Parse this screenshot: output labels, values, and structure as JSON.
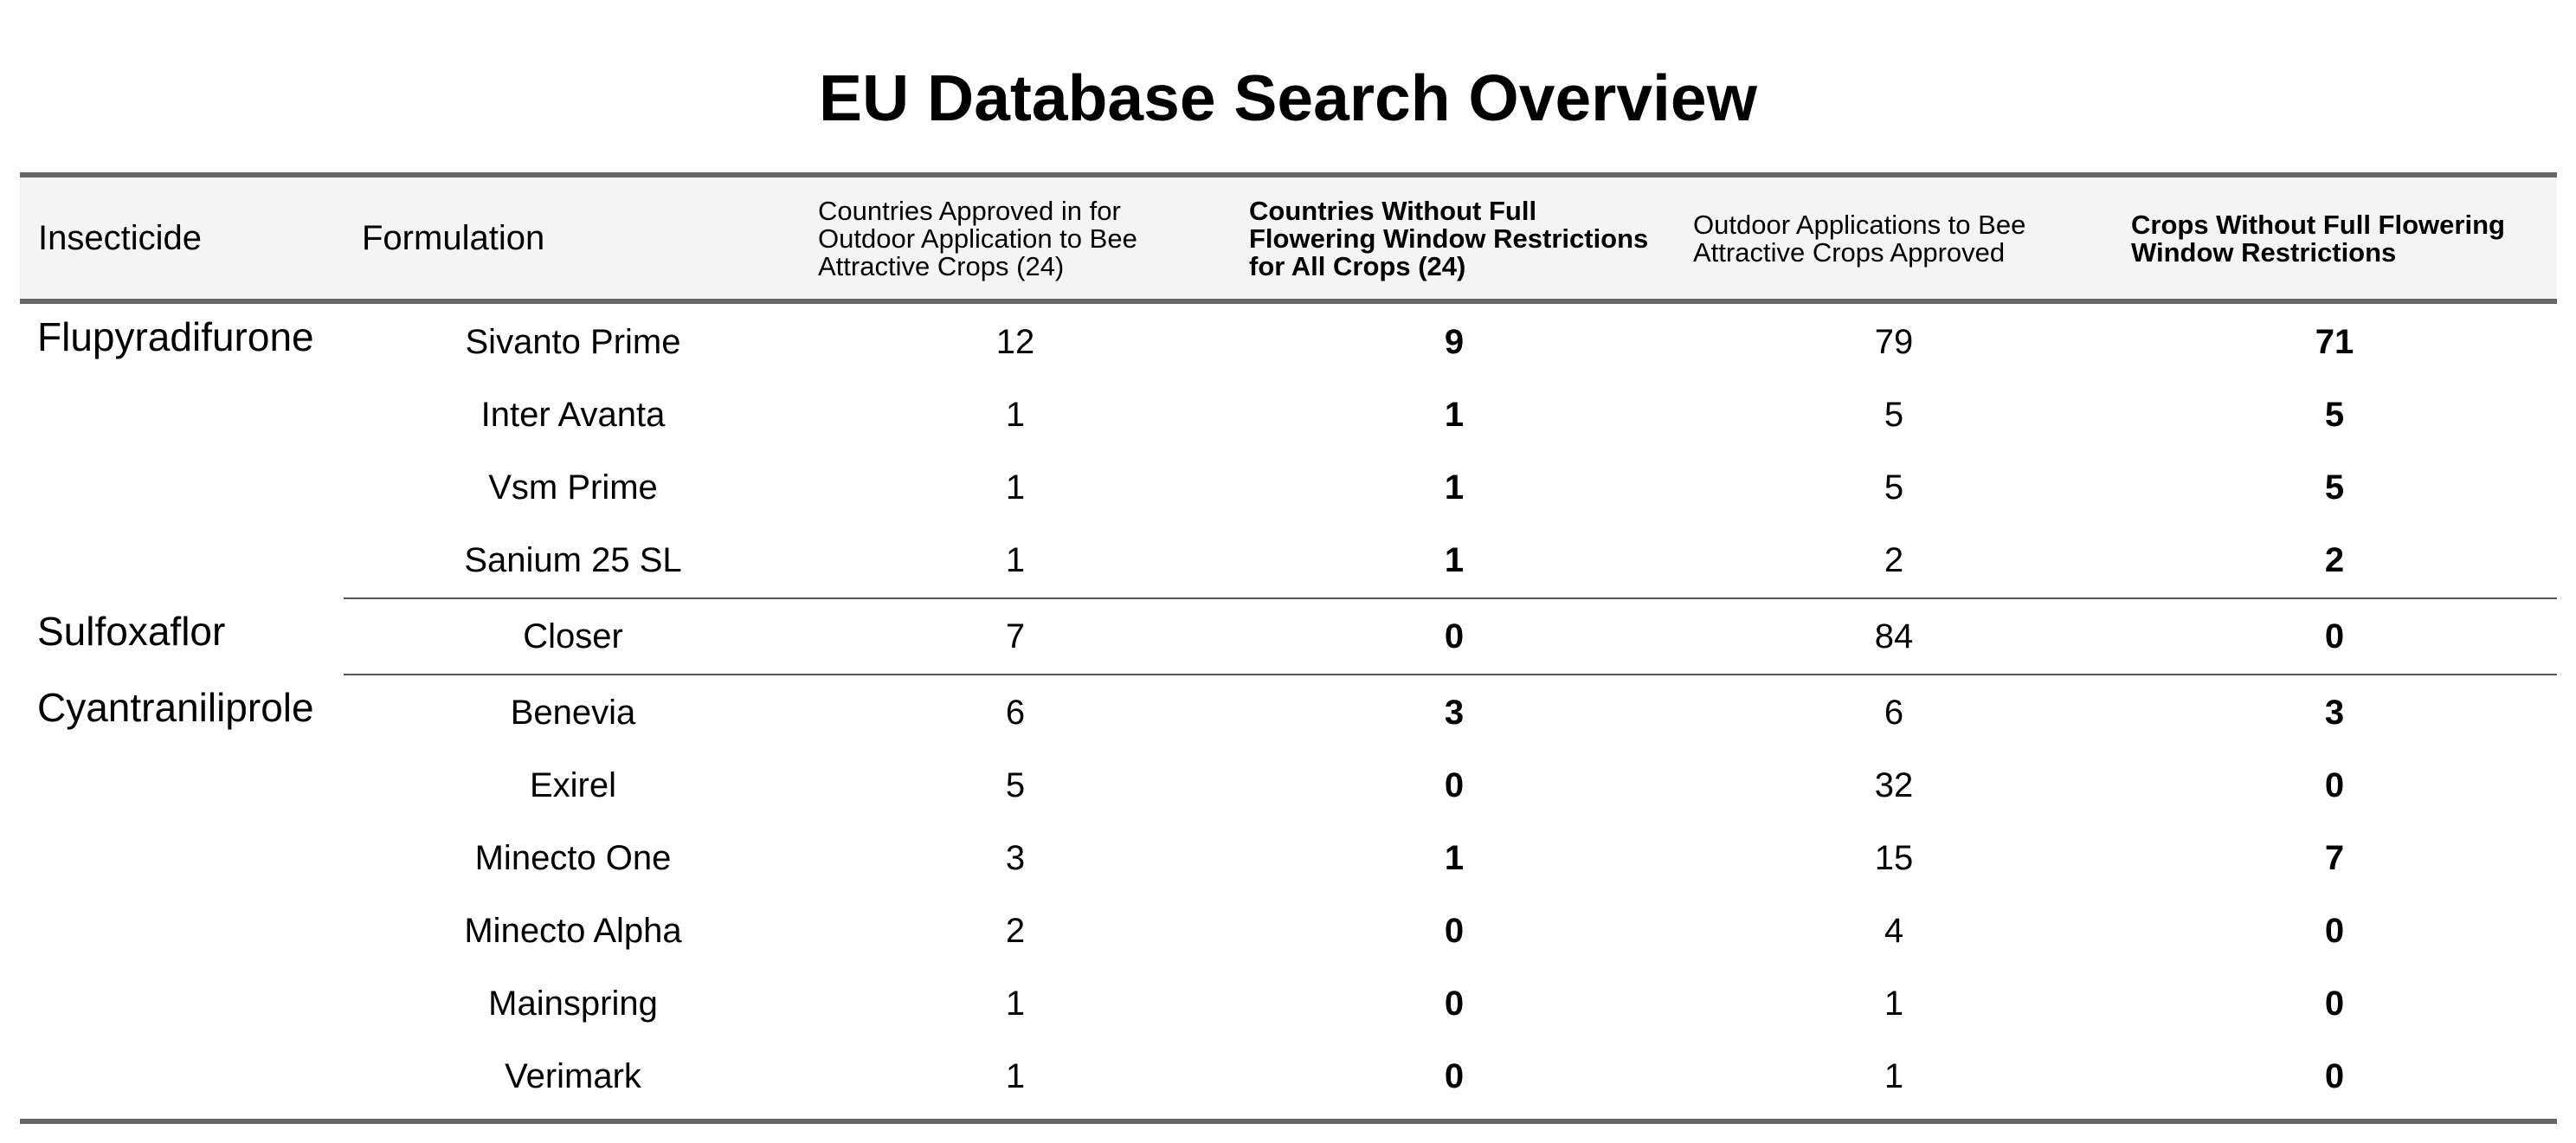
{
  "title": "EU Database Search Overview",
  "columns": [
    "Insecticide",
    "Formulation",
    "Countries Approved in for Outdoor Application to Bee Attractive Crops (24)",
    "Countries Without Full Flowering Window Restrictions for All Crops (24)",
    "Outdoor Applications to Bee Attractive Crops Approved",
    "Crops Without Full Flowering Window Restrictions"
  ],
  "groups": [
    {
      "insecticide": "Flupyradifurone",
      "rows": [
        {
          "formulation": "Sivanto Prime",
          "countries_approved": "12",
          "countries_without": "9",
          "outdoor_apps": "79",
          "crops_without": "71"
        },
        {
          "formulation": "Inter Avanta",
          "countries_approved": "1",
          "countries_without": "1",
          "outdoor_apps": "5",
          "crops_without": "5"
        },
        {
          "formulation": "Vsm Prime",
          "countries_approved": "1",
          "countries_without": "1",
          "outdoor_apps": "5",
          "crops_without": "5"
        },
        {
          "formulation": "Sanium 25 SL",
          "countries_approved": "1",
          "countries_without": "1",
          "outdoor_apps": "2",
          "crops_without": "2"
        }
      ]
    },
    {
      "insecticide": "Sulfoxaflor",
      "rows": [
        {
          "formulation": "Closer",
          "countries_approved": "7",
          "countries_without": "0",
          "outdoor_apps": "84",
          "crops_without": "0"
        }
      ]
    },
    {
      "insecticide": "Cyantraniliprole",
      "rows": [
        {
          "formulation": "Benevia",
          "countries_approved": "6",
          "countries_without": "3",
          "outdoor_apps": "6",
          "crops_without": "3"
        },
        {
          "formulation": "Exirel",
          "countries_approved": "5",
          "countries_without": "0",
          "outdoor_apps": "32",
          "crops_without": "0"
        },
        {
          "formulation": "Minecto One",
          "countries_approved": "3",
          "countries_without": "1",
          "outdoor_apps": "15",
          "crops_without": "7"
        },
        {
          "formulation": "Minecto Alpha",
          "countries_approved": "2",
          "countries_without": "0",
          "outdoor_apps": "4",
          "crops_without": "0"
        },
        {
          "formulation": "Mainspring",
          "countries_approved": "1",
          "countries_without": "0",
          "outdoor_apps": "1",
          "crops_without": "0"
        },
        {
          "formulation": "Verimark",
          "countries_approved": "1",
          "countries_without": "0",
          "outdoor_apps": "1",
          "crops_without": "0"
        }
      ]
    }
  ]
}
